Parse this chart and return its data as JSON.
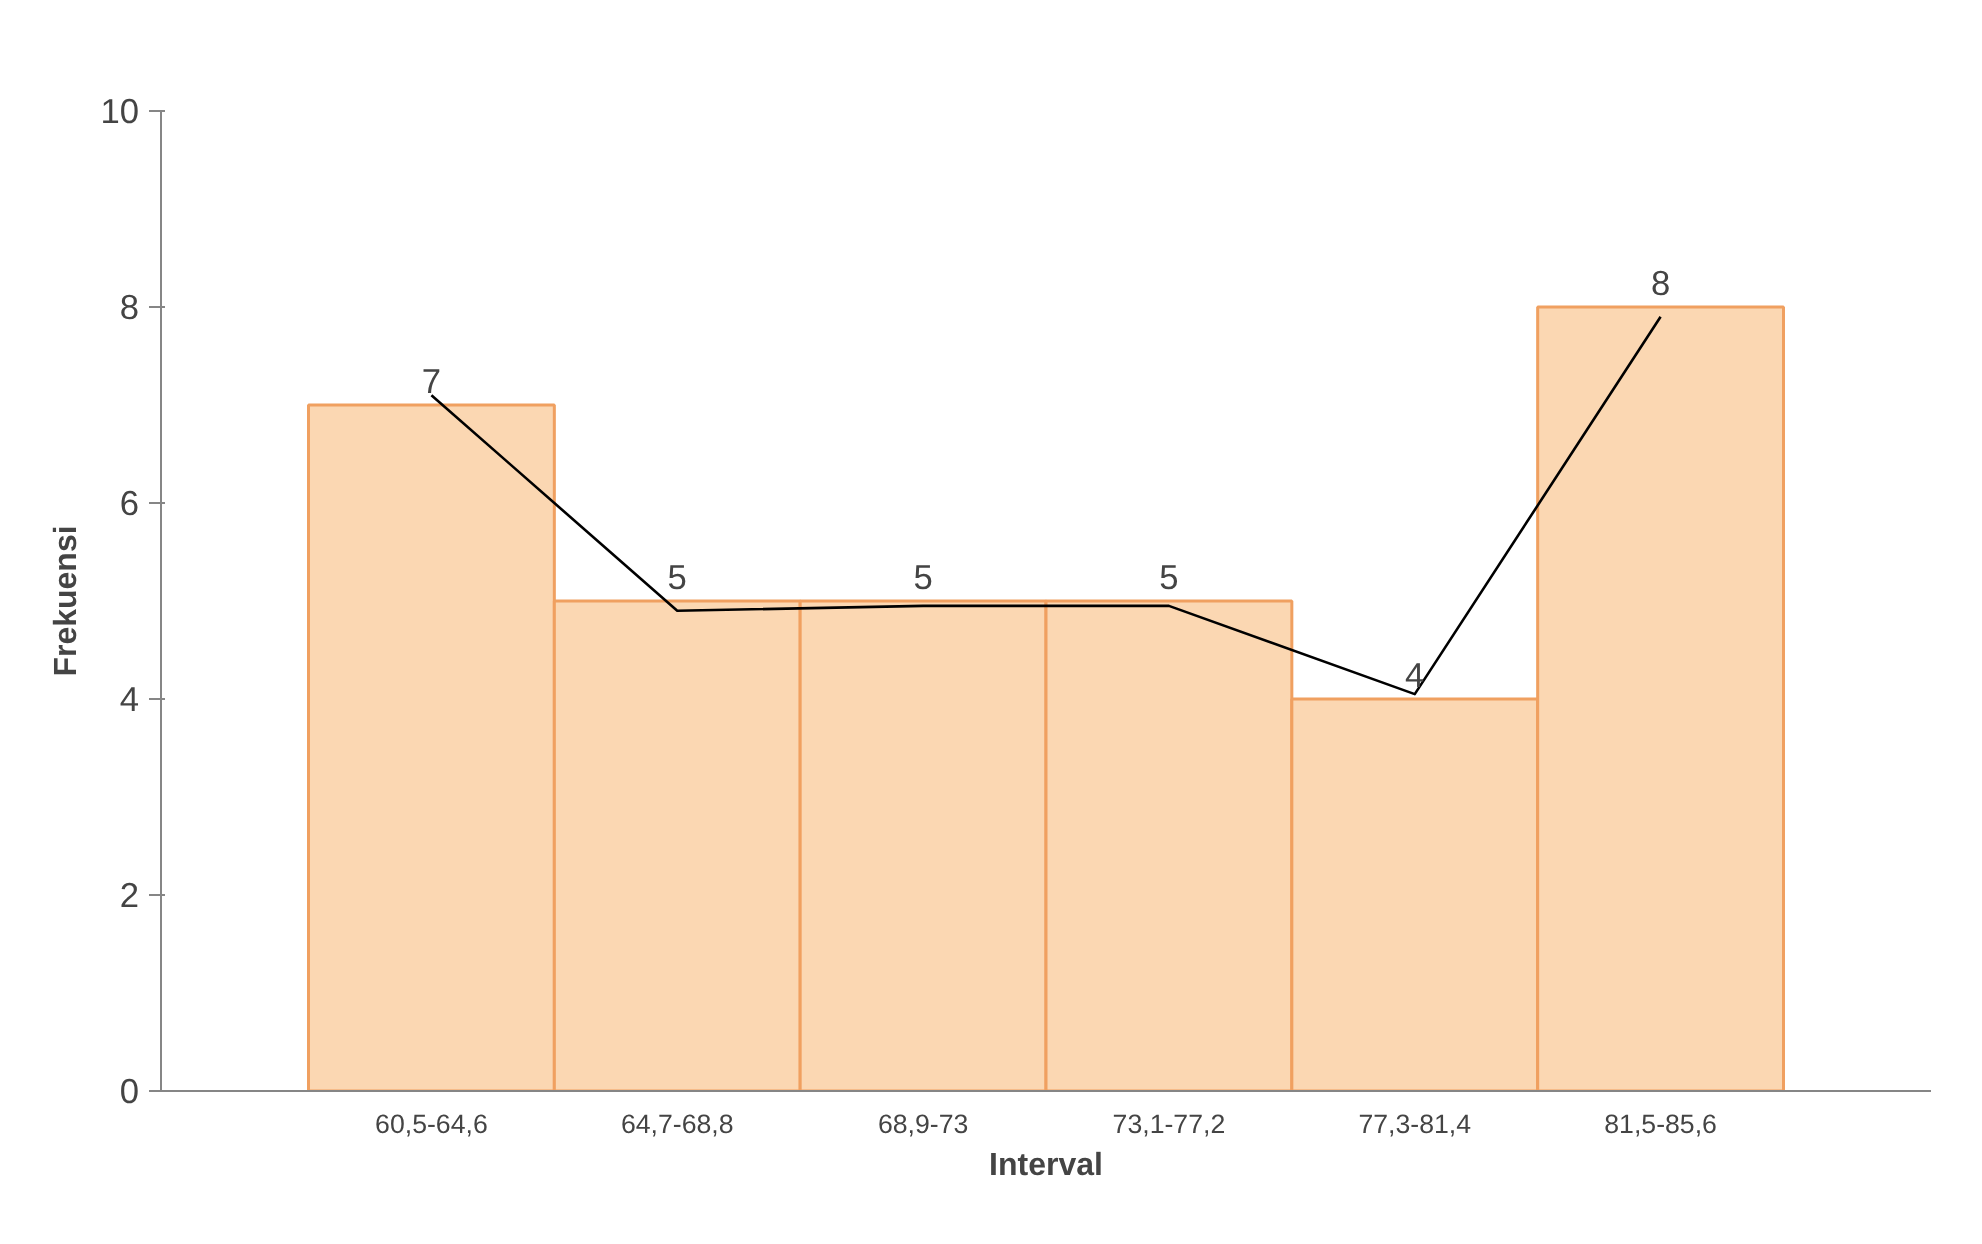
{
  "chart_data": {
    "type": "bar",
    "xlabel": "Interval",
    "ylabel": "Frekuensi",
    "categories": [
      "60,5-64,6",
      "64,7-68,8",
      "68,9-73",
      "73,1-77,2",
      "77,3-81,4",
      "81,5-85,6"
    ],
    "series": [
      {
        "color": "#fbd7b2",
        "values": [
          7,
          5,
          5,
          5,
          4,
          8
        ],
        "value_labels": [
          "7",
          "5",
          "5",
          "5",
          "4",
          "8"
        ]
      },
      {
        "type": "line",
        "color": "#000000",
        "x": [
          "60,5-64,6",
          "64,7-68,8",
          "68,9-73",
          "73,1-77,2",
          "77,3-81,4",
          "81,5-85,6"
        ],
        "values": [
          7.1,
          4.9,
          4.95,
          4.95,
          4.05,
          7.9
        ]
      }
    ],
    "ylim": [
      0,
      10
    ],
    "yticks": [
      0,
      2,
      4,
      6,
      8,
      10
    ],
    "grid": false
  }
}
